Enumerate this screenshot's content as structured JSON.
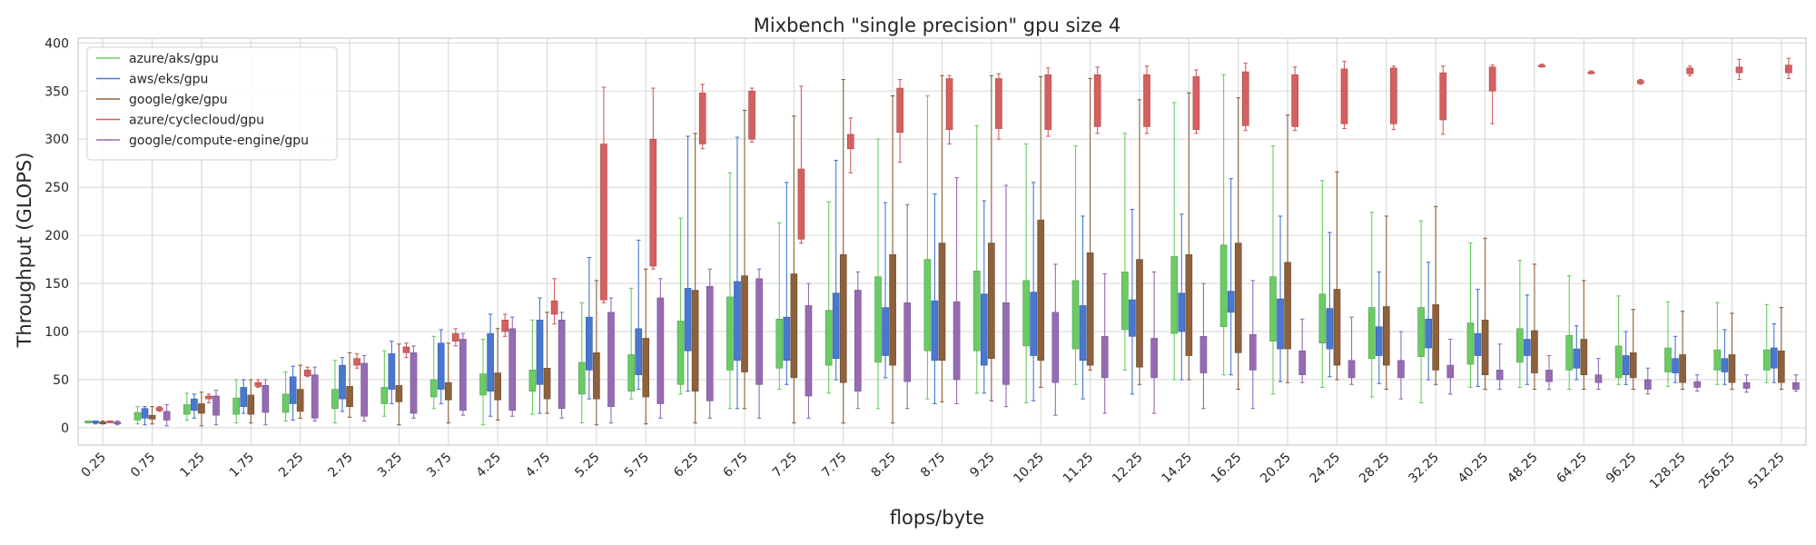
{
  "chart_data": {
    "type": "box",
    "title": "Mixbench \"single precision\" gpu size 4",
    "xlabel": "flops/byte",
    "ylabel": "Throughput (GLOPS)",
    "ylim": [
      -18,
      405
    ],
    "yticks": [
      0,
      50,
      100,
      150,
      200,
      250,
      300,
      350,
      400
    ],
    "grid": true,
    "legend_position": "top-left",
    "categories": [
      "0.25",
      "0.75",
      "1.25",
      "1.75",
      "2.25",
      "2.75",
      "3.25",
      "3.75",
      "4.25",
      "4.75",
      "5.25",
      "5.75",
      "6.25",
      "6.75",
      "7.25",
      "7.75",
      "8.25",
      "8.75",
      "9.25",
      "10.25",
      "11.25",
      "12.25",
      "14.25",
      "16.25",
      "20.25",
      "24.25",
      "28.25",
      "32.25",
      "40.25",
      "48.25",
      "64.25",
      "96.25",
      "128.25",
      "256.25",
      "512.25"
    ],
    "series": [
      {
        "name": "azure/aks/gpu",
        "color": "#6acc64",
        "boxes": [
          [
            5,
            5,
            7,
            7
          ],
          [
            4,
            8,
            16,
            22
          ],
          [
            8,
            14,
            24,
            36
          ],
          [
            5,
            14,
            31,
            50
          ],
          [
            7,
            16,
            35,
            58
          ],
          [
            5,
            20,
            40,
            70
          ],
          [
            12,
            25,
            42,
            80
          ],
          [
            20,
            32,
            50,
            95
          ],
          [
            3,
            34,
            56,
            92
          ],
          [
            14,
            38,
            60,
            112
          ],
          [
            5,
            35,
            68,
            130
          ],
          [
            30,
            38,
            76,
            145
          ],
          [
            35,
            45,
            111,
            218
          ],
          [
            20,
            60,
            136,
            265
          ],
          [
            40,
            62,
            113,
            213
          ],
          [
            36,
            65,
            122,
            235
          ],
          [
            20,
            68,
            157,
            300
          ],
          [
            30,
            80,
            175,
            345
          ],
          [
            36,
            80,
            163,
            314
          ],
          [
            26,
            85,
            153,
            295
          ],
          [
            45,
            82,
            153,
            293
          ],
          [
            60,
            102,
            162,
            306
          ],
          [
            50,
            98,
            178,
            338
          ],
          [
            55,
            105,
            190,
            367
          ],
          [
            35,
            90,
            157,
            293
          ],
          [
            42,
            88,
            139,
            257
          ],
          [
            32,
            72,
            125,
            224
          ],
          [
            26,
            74,
            125,
            215
          ],
          [
            42,
            66,
            109,
            192
          ],
          [
            42,
            68,
            103,
            174
          ],
          [
            40,
            60,
            96,
            158
          ],
          [
            45,
            52,
            85,
            137
          ],
          [
            43,
            58,
            83,
            131
          ],
          [
            45,
            60,
            81,
            130
          ],
          [
            47,
            60,
            81,
            128
          ]
        ]
      },
      {
        "name": "aws/eks/gpu",
        "color": "#4878d0",
        "boxes": [
          [
            4,
            5,
            7,
            7
          ],
          [
            3,
            10,
            20,
            22
          ],
          [
            10,
            18,
            30,
            35
          ],
          [
            15,
            22,
            42,
            50
          ],
          [
            8,
            25,
            53,
            64
          ],
          [
            17,
            30,
            65,
            73
          ],
          [
            25,
            40,
            77,
            90
          ],
          [
            25,
            40,
            88,
            102
          ],
          [
            12,
            38,
            98,
            118
          ],
          [
            15,
            45,
            112,
            135
          ],
          [
            30,
            60,
            115,
            177
          ],
          [
            40,
            55,
            103,
            195
          ],
          [
            38,
            80,
            145,
            303
          ],
          [
            20,
            70,
            152,
            302
          ],
          [
            45,
            70,
            115,
            255
          ],
          [
            50,
            72,
            140,
            278
          ],
          [
            52,
            75,
            125,
            234
          ],
          [
            25,
            70,
            132,
            243
          ],
          [
            36,
            65,
            139,
            236
          ],
          [
            28,
            75,
            141,
            255
          ],
          [
            30,
            70,
            127,
            220
          ],
          [
            35,
            95,
            133,
            227
          ],
          [
            50,
            100,
            140,
            222
          ],
          [
            55,
            120,
            142,
            259
          ],
          [
            48,
            82,
            134,
            220
          ],
          [
            53,
            82,
            124,
            203
          ],
          [
            46,
            75,
            105,
            162
          ],
          [
            50,
            83,
            113,
            172
          ],
          [
            43,
            75,
            98,
            144
          ],
          [
            45,
            75,
            92,
            138
          ],
          [
            50,
            62,
            82,
            106
          ],
          [
            45,
            55,
            75,
            100
          ],
          [
            47,
            57,
            72,
            95
          ],
          [
            45,
            58,
            72,
            102
          ],
          [
            47,
            62,
            83,
            108
          ]
        ]
      },
      {
        "name": "google/gke/gpu",
        "color": "#8c613c",
        "boxes": [
          [
            4,
            5,
            6,
            7
          ],
          [
            4,
            9,
            13,
            22
          ],
          [
            2,
            15,
            25,
            37
          ],
          [
            5,
            14,
            34,
            50
          ],
          [
            10,
            17,
            40,
            65
          ],
          [
            11,
            22,
            43,
            78
          ],
          [
            3,
            27,
            44,
            87
          ],
          [
            5,
            29,
            47,
            88
          ],
          [
            8,
            29,
            57,
            103
          ],
          [
            15,
            30,
            62,
            120
          ],
          [
            3,
            30,
            78,
            153
          ],
          [
            4,
            32,
            93,
            165
          ],
          [
            5,
            38,
            143,
            306
          ],
          [
            20,
            58,
            158,
            330
          ],
          [
            5,
            52,
            160,
            324
          ],
          [
            5,
            47,
            180,
            362
          ],
          [
            5,
            65,
            180,
            345
          ],
          [
            27,
            70,
            192,
            366
          ],
          [
            28,
            72,
            192,
            366
          ],
          [
            42,
            70,
            216,
            365
          ],
          [
            60,
            65,
            182,
            363
          ],
          [
            45,
            63,
            175,
            341
          ],
          [
            50,
            75,
            180,
            348
          ],
          [
            40,
            78,
            192,
            343
          ],
          [
            47,
            82,
            172,
            325
          ],
          [
            50,
            65,
            144,
            266
          ],
          [
            40,
            65,
            126,
            220
          ],
          [
            45,
            60,
            128,
            230
          ],
          [
            40,
            55,
            112,
            197
          ],
          [
            40,
            57,
            101,
            170
          ],
          [
            40,
            55,
            92,
            153
          ],
          [
            40,
            52,
            78,
            123
          ],
          [
            40,
            47,
            76,
            121
          ],
          [
            40,
            47,
            76,
            119
          ],
          [
            40,
            47,
            80,
            125
          ]
        ]
      },
      {
        "name": "azure/cyclecloud/gpu",
        "color": "#d65f5f",
        "boxes": [
          [
            6,
            6,
            7,
            7
          ],
          [
            17,
            18,
            21,
            22
          ],
          [
            26,
            30,
            33,
            35
          ],
          [
            42,
            43,
            47,
            50
          ],
          [
            53,
            54,
            60,
            63
          ],
          [
            62,
            65,
            72,
            77
          ],
          [
            73,
            78,
            84,
            88
          ],
          [
            85,
            90,
            98,
            103
          ],
          [
            95,
            100,
            112,
            118
          ],
          [
            108,
            118,
            132,
            155
          ],
          [
            130,
            133,
            295,
            354
          ],
          [
            165,
            168,
            300,
            353
          ],
          [
            290,
            295,
            348,
            357
          ],
          [
            297,
            300,
            350,
            353
          ],
          [
            192,
            196,
            269,
            355
          ],
          [
            265,
            290,
            305,
            322
          ],
          [
            276,
            307,
            353,
            362
          ],
          [
            295,
            310,
            363,
            366
          ],
          [
            300,
            311,
            363,
            368
          ],
          [
            303,
            310,
            367,
            374
          ],
          [
            306,
            313,
            367,
            375
          ],
          [
            306,
            313,
            367,
            376
          ],
          [
            306,
            310,
            365,
            372
          ],
          [
            309,
            314,
            370,
            379
          ],
          [
            309,
            313,
            367,
            375
          ],
          [
            311,
            316,
            373,
            381
          ],
          [
            310,
            316,
            374,
            376
          ],
          [
            305,
            320,
            369,
            376
          ],
          [
            316,
            350,
            375,
            377
          ],
          [
            375,
            376,
            377,
            378
          ],
          [
            368,
            369,
            370,
            371
          ],
          [
            357,
            358,
            361,
            362
          ],
          [
            366,
            368,
            374,
            376
          ],
          [
            362,
            369,
            375,
            383
          ],
          [
            363,
            369,
            377,
            384
          ]
        ]
      },
      {
        "name": "google/compute-engine/gpu",
        "color": "#956cb4",
        "boxes": [
          [
            3,
            4,
            6,
            7
          ],
          [
            2,
            8,
            17,
            24
          ],
          [
            3,
            13,
            33,
            39
          ],
          [
            3,
            16,
            44,
            50
          ],
          [
            7,
            10,
            55,
            63
          ],
          [
            7,
            12,
            67,
            75
          ],
          [
            10,
            15,
            78,
            85
          ],
          [
            13,
            18,
            92,
            98
          ],
          [
            12,
            18,
            103,
            115
          ],
          [
            10,
            20,
            112,
            120
          ],
          [
            5,
            22,
            120,
            135
          ],
          [
            10,
            25,
            135,
            155
          ],
          [
            10,
            28,
            147,
            165
          ],
          [
            10,
            45,
            155,
            165
          ],
          [
            10,
            33,
            127,
            150
          ],
          [
            20,
            38,
            143,
            162
          ],
          [
            20,
            48,
            130,
            232
          ],
          [
            25,
            50,
            131,
            260
          ],
          [
            22,
            45,
            130,
            252
          ],
          [
            13,
            47,
            120,
            170
          ],
          [
            15,
            52,
            95,
            160
          ],
          [
            15,
            52,
            93,
            162
          ],
          [
            20,
            57,
            95,
            150
          ],
          [
            20,
            60,
            97,
            153
          ],
          [
            47,
            55,
            80,
            113
          ],
          [
            45,
            52,
            70,
            115
          ],
          [
            30,
            52,
            70,
            100
          ],
          [
            35,
            52,
            65,
            92
          ],
          [
            40,
            50,
            60,
            87
          ],
          [
            40,
            48,
            60,
            75
          ],
          [
            40,
            47,
            55,
            72
          ],
          [
            35,
            40,
            50,
            62
          ],
          [
            38,
            42,
            48,
            55
          ],
          [
            37,
            41,
            47,
            55
          ],
          [
            38,
            40,
            47,
            55
          ]
        ]
      }
    ]
  }
}
